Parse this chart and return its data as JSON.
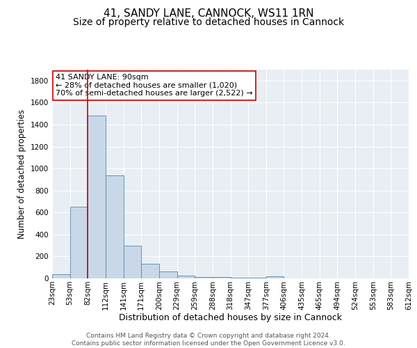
{
  "title_line1": "41, SANDY LANE, CANNOCK, WS11 1RN",
  "title_line2": "Size of property relative to detached houses in Cannock",
  "xlabel": "Distribution of detached houses by size in Cannock",
  "ylabel": "Number of detached properties",
  "bin_labels": [
    "23sqm",
    "53sqm",
    "82sqm",
    "112sqm",
    "141sqm",
    "171sqm",
    "200sqm",
    "229sqm",
    "259sqm",
    "288sqm",
    "318sqm",
    "347sqm",
    "377sqm",
    "406sqm",
    "435sqm",
    "465sqm",
    "494sqm",
    "524sqm",
    "553sqm",
    "583sqm",
    "612sqm"
  ],
  "counts": [
    35,
    650,
    1480,
    940,
    295,
    130,
    65,
    25,
    15,
    10,
    5,
    5,
    20,
    0,
    0,
    0,
    0,
    0,
    0,
    0
  ],
  "bar_color": "#c8d8e8",
  "bar_edge_color": "#5588aa",
  "marker_bin_index": 2,
  "marker_color": "#cc0000",
  "annotation_text": "41 SANDY LANE: 90sqm\n← 28% of detached houses are smaller (1,020)\n70% of semi-detached houses are larger (2,522) →",
  "annotation_box_color": "#ffffff",
  "annotation_box_edge": "#cc0000",
  "ylim": [
    0,
    1900
  ],
  "yticks": [
    0,
    200,
    400,
    600,
    800,
    1000,
    1200,
    1400,
    1600,
    1800
  ],
  "background_color": "#e8eef4",
  "footer_text": "Contains HM Land Registry data © Crown copyright and database right 2024.\nContains public sector information licensed under the Open Government Licence v3.0.",
  "title_fontsize": 11,
  "subtitle_fontsize": 10,
  "ylabel_fontsize": 8.5,
  "xlabel_fontsize": 9,
  "annot_fontsize": 8,
  "tick_fontsize": 7.5,
  "footer_fontsize": 6.5
}
